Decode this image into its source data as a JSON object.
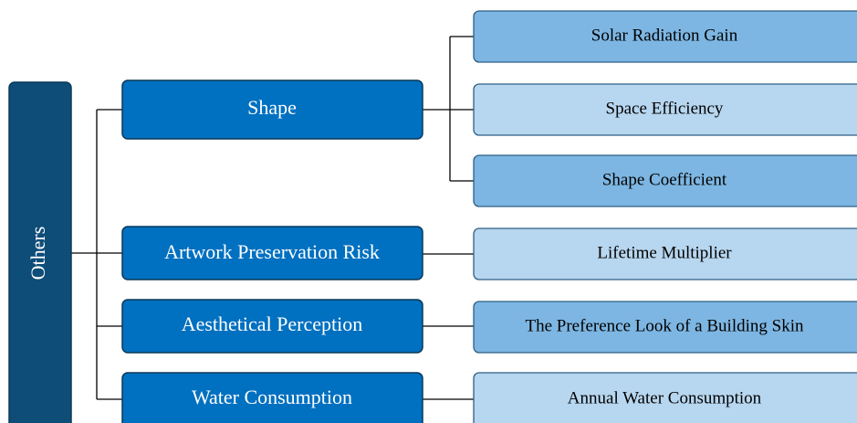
{
  "root": {
    "label": "Others"
  },
  "branches": [
    {
      "label": "Shape",
      "leaves": [
        "Solar Radiation Gain",
        "Space Efficiency",
        "Shape Coefficient"
      ]
    },
    {
      "label": "Artwork Preservation Risk",
      "leaves": [
        "Lifetime Multiplier"
      ]
    },
    {
      "label": "Aesthetical Perception",
      "leaves": [
        "The Preference Look of a Building Skin"
      ]
    },
    {
      "label": "Water Consumption",
      "leaves": [
        "Annual Water Consumption"
      ]
    }
  ]
}
